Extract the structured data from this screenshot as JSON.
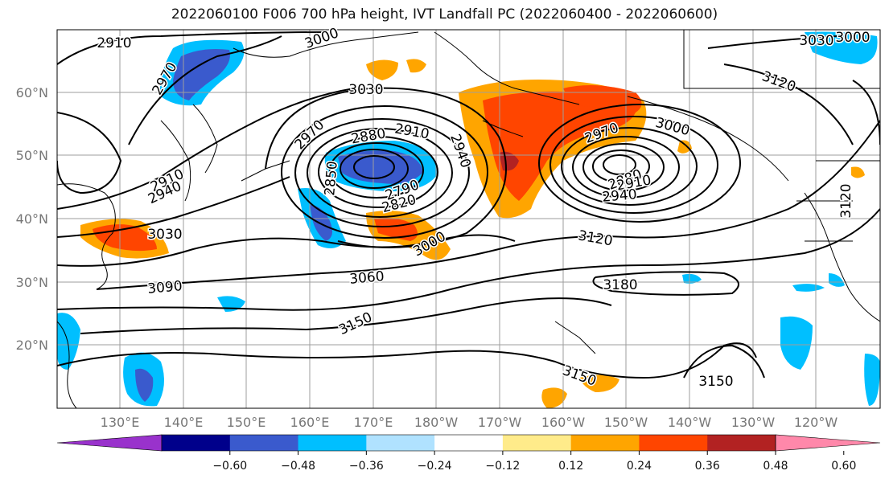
{
  "title": "2022060100 F006 700 hPa height, IVT Landfall PC (2022060400 - 2022060600)",
  "lat_labels": [
    "60°N",
    "50°N",
    "40°N",
    "30°N",
    "20°N"
  ],
  "lon_labels": [
    "130°E",
    "140°E",
    "150°E",
    "160°E",
    "170°E",
    "180°W",
    "170°W",
    "160°W",
    "150°W",
    "140°W",
    "130°W",
    "120°W"
  ],
  "colorbar": {
    "colors": [
      "#9932CC",
      "#00008B",
      "#3A5ACD",
      "#00BFFF",
      "#B0E2FF",
      "#FFFFFF",
      "#FFEB8A",
      "#FFA500",
      "#FF4500",
      "#B22222",
      "#FF88AA"
    ],
    "tick_labels": [
      "−0.60",
      "−0.48",
      "−0.36",
      "−0.24",
      "−0.12",
      "0.12",
      "0.24",
      "0.36",
      "0.48",
      "0.60"
    ]
  },
  "contour_labels": [
    "2910",
    "2970",
    "3000",
    "3030",
    "2970",
    "2880",
    "2910",
    "2940",
    "2850",
    "2790",
    "2820",
    "2910",
    "2940",
    "3030",
    "3090",
    "3060",
    "3000",
    "3150",
    "3120",
    "3180",
    "3150",
    "3150",
    "2970",
    "3000",
    "2880",
    "2910",
    "2940",
    "3030",
    "3000",
    "3120",
    "3120"
  ]
}
